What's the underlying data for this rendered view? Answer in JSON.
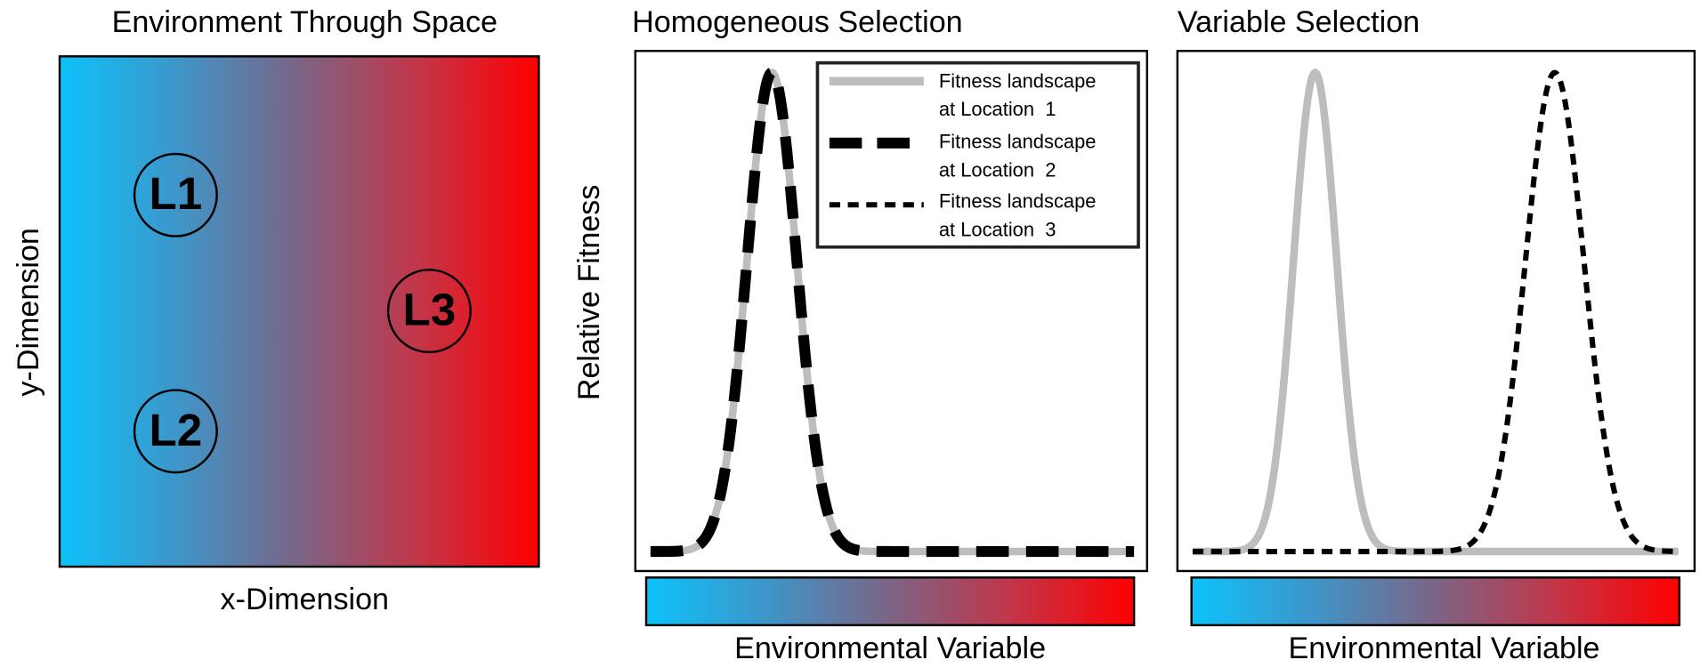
{
  "panels": [
    {
      "title": "Environment Through Space",
      "x_label": "x-Dimension",
      "y_label": "y-Dimension",
      "locations": [
        "L1",
        "L2",
        "L3"
      ]
    },
    {
      "title": "Homogeneous Selection",
      "y_label": "Relative Fitness",
      "x_label": "Environmental Variable",
      "legend": [
        [
          "Fitness landscape",
          "at Location  1"
        ],
        [
          "Fitness landscape",
          "at Location  2"
        ],
        [
          "Fitness landscape",
          "at Location  3"
        ]
      ]
    },
    {
      "title": "Variable Selection",
      "x_label": "Environmental Variable"
    }
  ]
}
